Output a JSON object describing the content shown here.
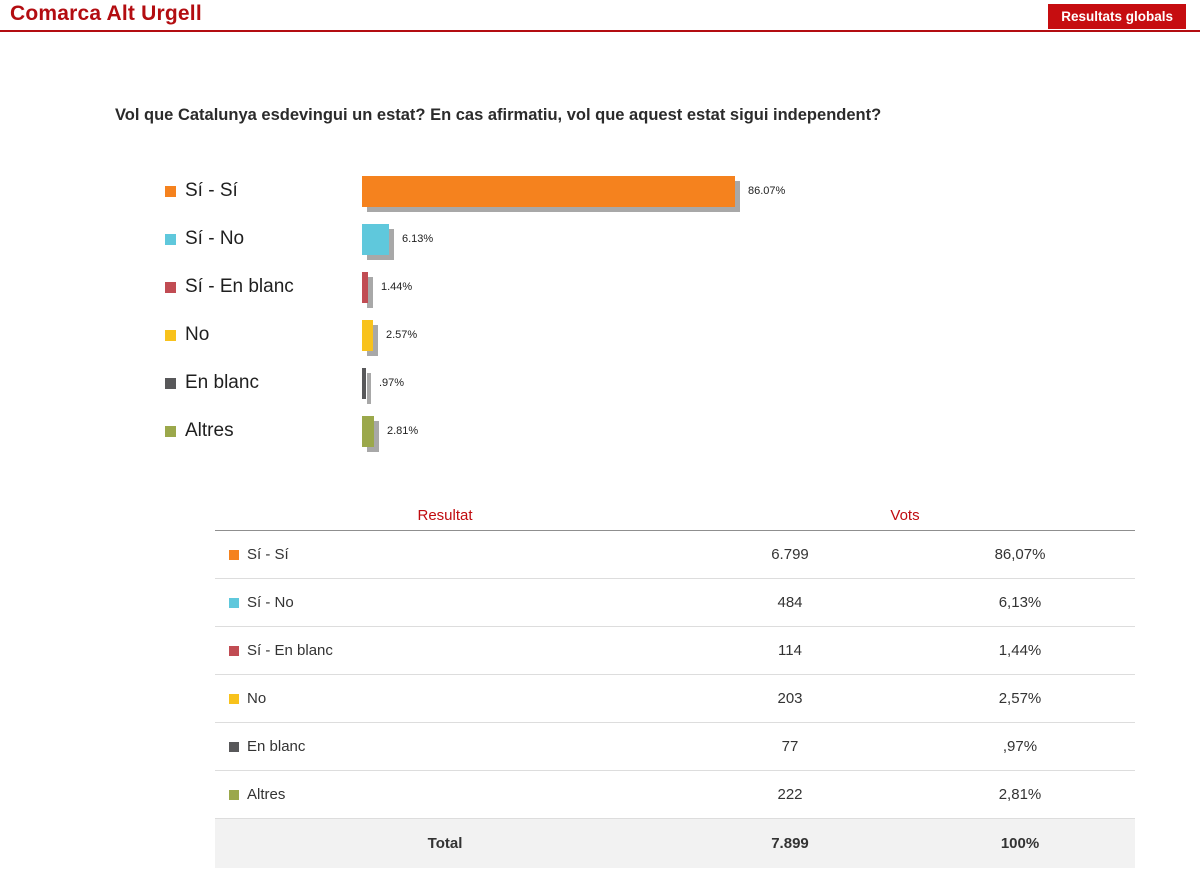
{
  "header": {
    "title": "Comarca Alt Urgell",
    "button_label": "Resultats globals"
  },
  "question": "Vol que Catalunya esdevingui un estat? En cas afirmatiu, vol que aquest estat sigui independent?",
  "chart_data": {
    "type": "bar",
    "orientation": "horizontal",
    "categories": [
      "Sí - Sí",
      "Sí - No",
      "Sí - En blanc",
      "No",
      "En blanc",
      "Altres"
    ],
    "values": [
      86.07,
      6.13,
      1.44,
      2.57,
      0.97,
      2.81
    ],
    "labels": [
      "86.07%",
      "6.13%",
      "1.44%",
      "2.57%",
      ".97%",
      "2.81%"
    ],
    "colors": [
      "#F5821E",
      "#5FC8DC",
      "#C14C53",
      "#F8C21C",
      "#58585A",
      "#9BA84B"
    ],
    "xlim": [
      0,
      100
    ],
    "legend_position": "left",
    "grid": false
  },
  "table": {
    "headers": {
      "result": "Resultat",
      "votes": "Vots"
    },
    "rows": [
      {
        "label": "Sí - Sí",
        "color": "#F5821E",
        "votes": "6.799",
        "percent": "86,07%"
      },
      {
        "label": "Sí - No",
        "color": "#5FC8DC",
        "votes": "484",
        "percent": "6,13%"
      },
      {
        "label": "Sí - En blanc",
        "color": "#C14C53",
        "votes": "114",
        "percent": "1,44%"
      },
      {
        "label": "No",
        "color": "#F8C21C",
        "votes": "203",
        "percent": "2,57%"
      },
      {
        "label": "En blanc",
        "color": "#58585A",
        "votes": "77",
        "percent": ",97%"
      },
      {
        "label": "Altres",
        "color": "#9BA84B",
        "votes": "222",
        "percent": "2,81%"
      }
    ],
    "total": {
      "label": "Total",
      "votes": "7.899",
      "percent": "100%"
    }
  }
}
